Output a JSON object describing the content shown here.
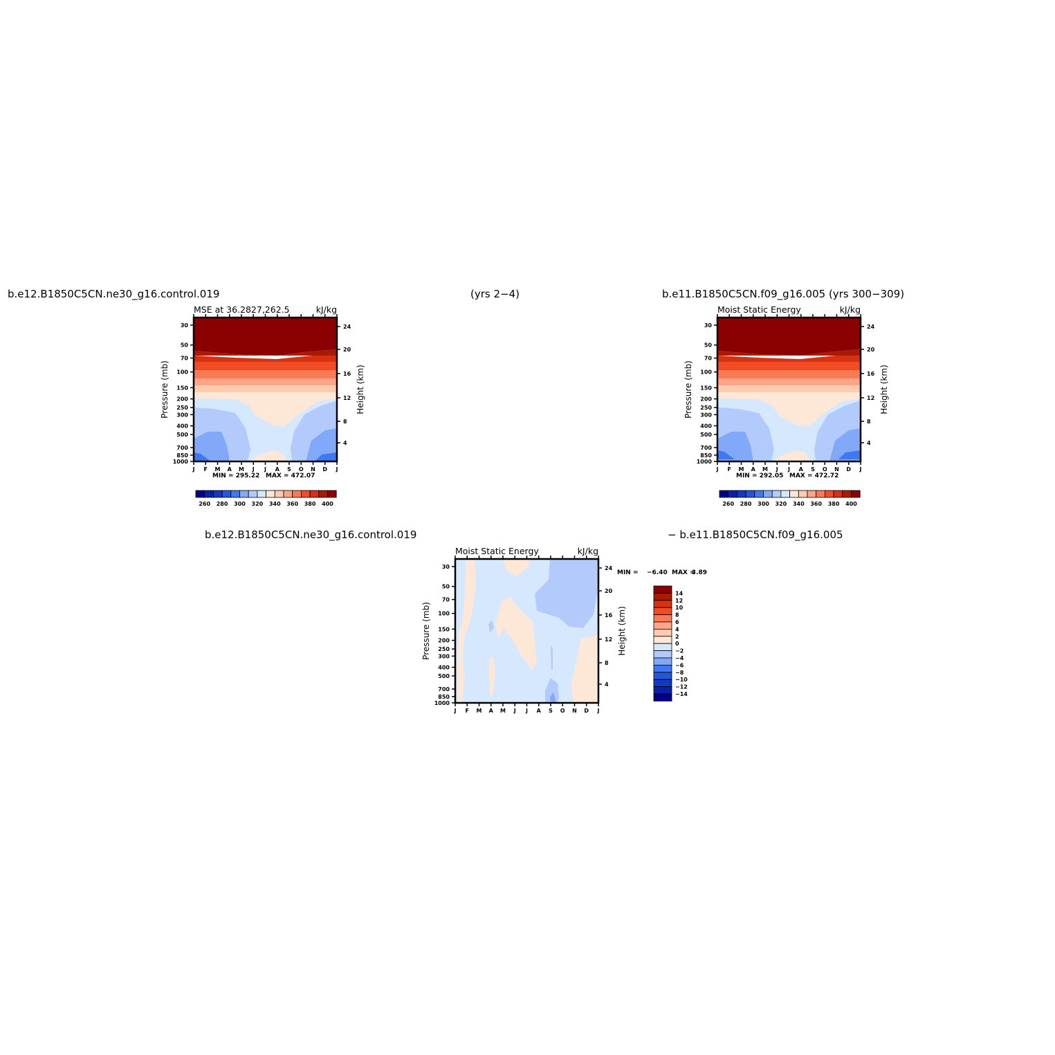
{
  "headers": {
    "top_left": "b.e12.B1850C5CN.ne30_g16.control.019",
    "top_center": "(yrs 2−4)",
    "top_right": "b.e11.B1850C5CN.f09_g16.005 (yrs 300−309)",
    "bottom_left": "b.e12.B1850C5CN.ne30_g16.control.019",
    "bottom_right": "− b.e11.B1850C5CN.f09_g16.005"
  },
  "chart_data": [
    {
      "type": "heatmap",
      "title": "MSE at 36.2827,262.5",
      "units": "kJ/kg",
      "ylabel": "Pressure (mb)",
      "ylabel_right": "Height (km)",
      "x": [
        "J",
        "F",
        "M",
        "A",
        "M",
        "J",
        "J",
        "A",
        "S",
        "O",
        "N",
        "D",
        "J"
      ],
      "y_ticks": [
        "30",
        "50",
        "70",
        "100",
        "150",
        "200",
        "250",
        "300",
        "400",
        "500",
        "700",
        "850",
        "1000"
      ],
      "y_right_ticks": [
        "24",
        "20",
        "16",
        "12",
        "8",
        "4"
      ],
      "min_label": "MIN = 295.22",
      "max_label": "MAX = 472.07",
      "min": 295.22,
      "max": 472.07,
      "colorbar": {
        "orientation": "horizontal",
        "labels": [
          "260",
          "280",
          "300",
          "320",
          "340",
          "360",
          "380",
          "400"
        ],
        "colors": [
          "#00008b",
          "#0a1fa8",
          "#1437c4",
          "#2456db",
          "#3f78f0",
          "#82a8f9",
          "#b3cbfc",
          "#d6e8fe",
          "#fde8d7",
          "#fdcbb0",
          "#fca587",
          "#fa7a55",
          "#f04d25",
          "#d83010",
          "#a81a04",
          "#8b0000"
        ]
      }
    },
    {
      "type": "heatmap",
      "title": "Moist Static Energy",
      "units": "kJ/kg",
      "ylabel": "Pressure (mb)",
      "ylabel_right": "Height (km)",
      "x": [
        "J",
        "F",
        "M",
        "A",
        "M",
        "J",
        "J",
        "A",
        "S",
        "O",
        "N",
        "D",
        "J"
      ],
      "y_ticks": [
        "30",
        "50",
        "70",
        "100",
        "150",
        "200",
        "250",
        "300",
        "400",
        "500",
        "700",
        "850",
        "1000"
      ],
      "y_right_ticks": [
        "24",
        "20",
        "16",
        "12",
        "8",
        "4"
      ],
      "min_label": "MIN = 292.05",
      "max_label": "MAX = 472.72",
      "min": 292.05,
      "max": 472.72,
      "colorbar": {
        "orientation": "horizontal",
        "labels": [
          "260",
          "280",
          "300",
          "320",
          "340",
          "360",
          "380",
          "400"
        ],
        "colors": [
          "#00008b",
          "#0a1fa8",
          "#1437c4",
          "#2456db",
          "#3f78f0",
          "#82a8f9",
          "#b3cbfc",
          "#d6e8fe",
          "#fde8d7",
          "#fdcbb0",
          "#fca587",
          "#fa7a55",
          "#f04d25",
          "#d83010",
          "#a81a04",
          "#8b0000"
        ]
      }
    },
    {
      "type": "heatmap",
      "title": "Moist Static Energy",
      "units": "kJ/kg",
      "ylabel": "Pressure (mb)",
      "ylabel_right": "Height (km)",
      "x": [
        "J",
        "F",
        "M",
        "A",
        "M",
        "J",
        "J",
        "A",
        "S",
        "O",
        "N",
        "D",
        "J"
      ],
      "y_ticks": [
        "30",
        "50",
        "70",
        "100",
        "150",
        "200",
        "250",
        "300",
        "400",
        "500",
        "700",
        "850",
        "1000"
      ],
      "y_right_ticks": [
        "24",
        "20",
        "16",
        "12",
        "8",
        "4"
      ],
      "min_label": "MIN =",
      "min_value": "−6.40",
      "max_label": "MAX =",
      "max_value": "3.89",
      "min": -6.4,
      "max": 3.89,
      "colorbar": {
        "orientation": "vertical",
        "labels": [
          "14",
          "12",
          "10",
          "8",
          "6",
          "4",
          "2",
          "0",
          "−2",
          "−4",
          "−6",
          "−8",
          "−10",
          "−12",
          "−14"
        ],
        "colors": [
          "#8b0000",
          "#a81a04",
          "#d83010",
          "#f04d25",
          "#fa7a55",
          "#fca587",
          "#fdcbb0",
          "#fde8d7",
          "#d6e8fe",
          "#b3cbfc",
          "#82a8f9",
          "#3f78f0",
          "#2456db",
          "#1437c4",
          "#0a1fa8",
          "#00008b"
        ]
      }
    }
  ]
}
